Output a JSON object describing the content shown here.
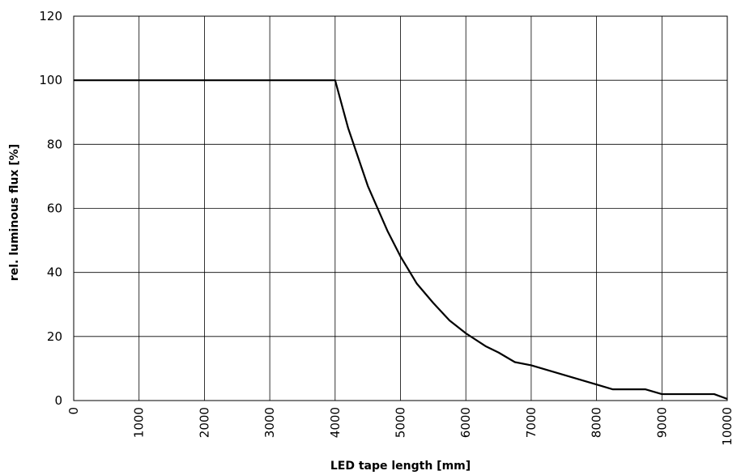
{
  "chart_data": {
    "type": "line",
    "title": "",
    "xlabel": "LED tape length [mm]",
    "ylabel": "rel. luminous flux [%]",
    "xlim": [
      0,
      10000
    ],
    "ylim": [
      0,
      120
    ],
    "x_ticks": [
      0,
      1000,
      2000,
      3000,
      4000,
      5000,
      6000,
      7000,
      8000,
      9000,
      10000
    ],
    "y_ticks": [
      0,
      20,
      40,
      60,
      80,
      100,
      120
    ],
    "grid": true,
    "legend": "none",
    "series": [
      {
        "color": "#000000",
        "x": [
          0,
          4000,
          4200,
          4500,
          4800,
          5000,
          5250,
          5500,
          5750,
          6000,
          6300,
          6500,
          6750,
          7000,
          7500,
          8000,
          8250,
          8750,
          9000,
          9500,
          9800,
          10000
        ],
        "y": [
          100,
          100,
          85,
          67,
          53,
          45,
          36.5,
          30.5,
          25,
          21,
          17,
          15,
          12,
          11,
          8,
          5,
          3.5,
          3.5,
          2,
          2,
          2,
          0.5
        ]
      }
    ]
  }
}
